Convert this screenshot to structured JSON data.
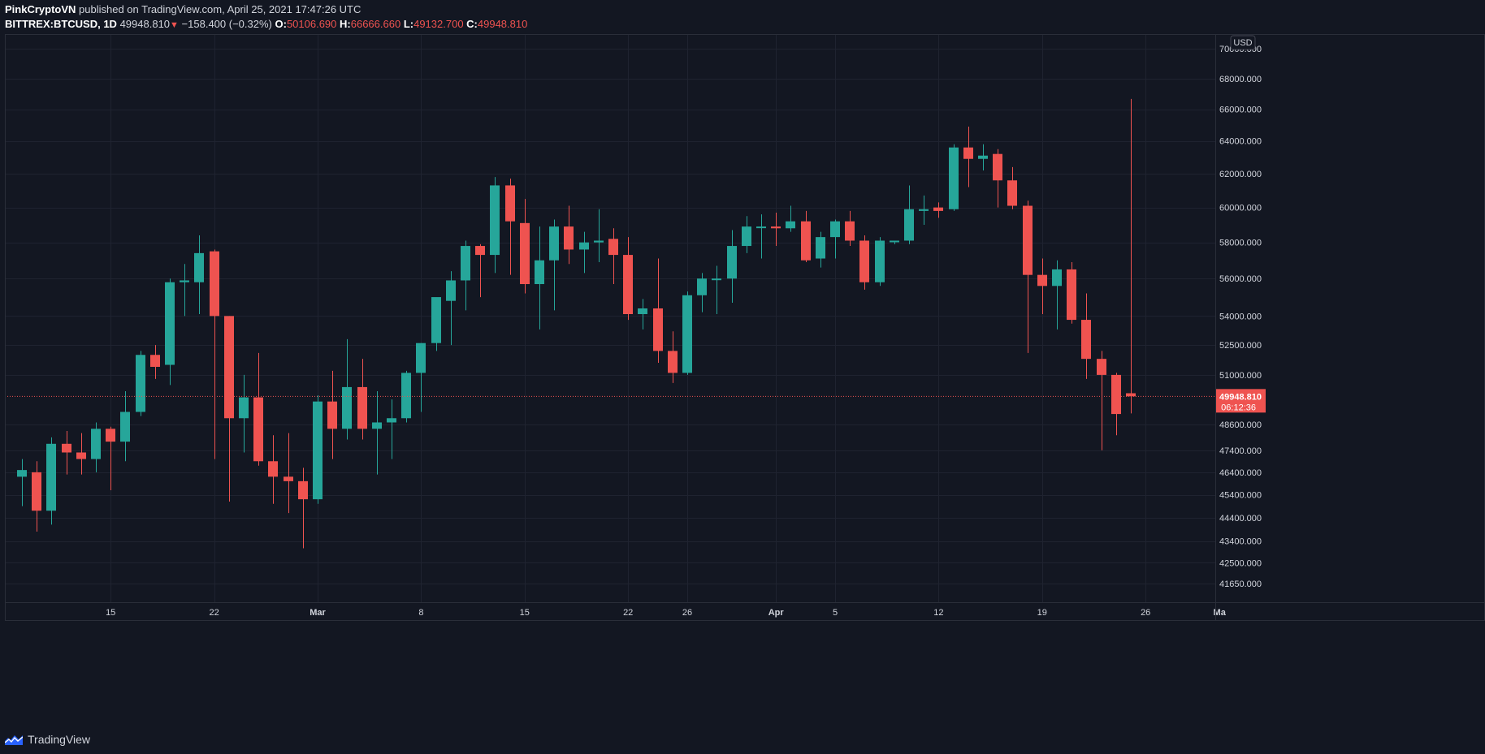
{
  "header": {
    "publisher": "PinkCryptoVN",
    "published_text": " published on TradingView.com, April 25, 2021 17:47:26 UTC",
    "symbol": "BITTREX:BTCUSD, 1D",
    "last": "49948.810",
    "change_arrow": "▼",
    "change": "−158.400 (−0.32%)",
    "o_label": "O:",
    "o_value": "50106.690",
    "h_label": "H:",
    "h_value": "66666.660",
    "l_label": "L:",
    "l_value": "49132.700",
    "c_label": "C:",
    "c_value": "49948.810"
  },
  "footer": {
    "brand": "TradingView",
    "logo_icon": "tradingview-logo-icon"
  },
  "colors": {
    "background": "#131722",
    "grid": "#1f2330",
    "up": "#26a69a",
    "down": "#ef5350",
    "axis_text": "#d1d4dc"
  },
  "chart_data": {
    "type": "candlestick",
    "currency_label": "USD",
    "scale": "log",
    "ylim": [
      40900,
      71000
    ],
    "y_ticks": [
      70000,
      68000,
      66000,
      64000,
      62000,
      60000,
      58000,
      56000,
      54000,
      52500,
      51000,
      48600,
      47400,
      46400,
      45400,
      44400,
      43400,
      42500,
      41650
    ],
    "y_tick_labels": [
      "70000.000",
      "68000.000",
      "66000.000",
      "64000.000",
      "62000.000",
      "60000.000",
      "58000.000",
      "56000.000",
      "54000.000",
      "52500.000",
      "51000.000",
      "48600.000",
      "47400.000",
      "46400.000",
      "45400.000",
      "44400.000",
      "43400.000",
      "42500.000",
      "41650.000"
    ],
    "x_ticks": [
      {
        "index": 6,
        "label": "15",
        "bold": false
      },
      {
        "index": 13,
        "label": "22",
        "bold": false
      },
      {
        "index": 20,
        "label": "Mar",
        "bold": true
      },
      {
        "index": 27,
        "label": "8",
        "bold": false
      },
      {
        "index": 34,
        "label": "15",
        "bold": false
      },
      {
        "index": 41,
        "label": "22",
        "bold": false
      },
      {
        "index": 45,
        "label": "26",
        "bold": false
      },
      {
        "index": 51,
        "label": "Apr",
        "bold": true
      },
      {
        "index": 55,
        "label": "5",
        "bold": false
      },
      {
        "index": 62,
        "label": "12",
        "bold": false
      },
      {
        "index": 69,
        "label": "19",
        "bold": false
      },
      {
        "index": 76,
        "label": "26",
        "bold": false
      },
      {
        "index": 81,
        "label": "Ma",
        "bold": true
      }
    ],
    "last_price_label": "49948.810",
    "countdown_label": "06:12:36",
    "last_price": 49948.81,
    "candles": [
      {
        "o": 46200,
        "h": 47000,
        "l": 44900,
        "c": 46500
      },
      {
        "o": 46400,
        "h": 46900,
        "l": 43800,
        "c": 44700
      },
      {
        "o": 44700,
        "h": 48000,
        "l": 44100,
        "c": 47700
      },
      {
        "o": 47700,
        "h": 48300,
        "l": 46300,
        "c": 47300
      },
      {
        "o": 47300,
        "h": 48200,
        "l": 46300,
        "c": 47000
      },
      {
        "o": 47000,
        "h": 48700,
        "l": 46400,
        "c": 48400
      },
      {
        "o": 48400,
        "h": 48500,
        "l": 45600,
        "c": 47800
      },
      {
        "o": 47800,
        "h": 50200,
        "l": 46900,
        "c": 49200
      },
      {
        "o": 49200,
        "h": 52200,
        "l": 49000,
        "c": 52000
      },
      {
        "o": 52000,
        "h": 52500,
        "l": 50800,
        "c": 51400
      },
      {
        "o": 51500,
        "h": 56000,
        "l": 50500,
        "c": 55800
      },
      {
        "o": 55800,
        "h": 56800,
        "l": 54000,
        "c": 55900
      },
      {
        "o": 55800,
        "h": 58400,
        "l": 54100,
        "c": 57400
      },
      {
        "o": 57500,
        "h": 57600,
        "l": 47000,
        "c": 54000
      },
      {
        "o": 54000,
        "h": 54000,
        "l": 45100,
        "c": 48900
      },
      {
        "o": 48900,
        "h": 51000,
        "l": 47300,
        "c": 49900
      },
      {
        "o": 49900,
        "h": 52100,
        "l": 46700,
        "c": 46900
      },
      {
        "o": 46900,
        "h": 48100,
        "l": 45000,
        "c": 46200
      },
      {
        "o": 46200,
        "h": 48200,
        "l": 44600,
        "c": 46000
      },
      {
        "o": 46000,
        "h": 46600,
        "l": 43100,
        "c": 45200
      },
      {
        "o": 45200,
        "h": 50000,
        "l": 45000,
        "c": 49700
      },
      {
        "o": 49700,
        "h": 51200,
        "l": 47000,
        "c": 48400
      },
      {
        "o": 48400,
        "h": 52800,
        "l": 47900,
        "c": 50400
      },
      {
        "o": 50400,
        "h": 51800,
        "l": 47900,
        "c": 48400
      },
      {
        "o": 48400,
        "h": 50200,
        "l": 46300,
        "c": 48700
      },
      {
        "o": 48700,
        "h": 49800,
        "l": 47000,
        "c": 48900
      },
      {
        "o": 48900,
        "h": 51200,
        "l": 48700,
        "c": 51100
      },
      {
        "o": 51100,
        "h": 52600,
        "l": 49200,
        "c": 52600
      },
      {
        "o": 52600,
        "h": 54800,
        "l": 52200,
        "c": 55000
      },
      {
        "o": 54800,
        "h": 56400,
        "l": 52500,
        "c": 55900
      },
      {
        "o": 55900,
        "h": 58100,
        "l": 54300,
        "c": 57800
      },
      {
        "o": 57800,
        "h": 57900,
        "l": 55000,
        "c": 57300
      },
      {
        "o": 57300,
        "h": 61800,
        "l": 56300,
        "c": 61300
      },
      {
        "o": 61300,
        "h": 61700,
        "l": 56200,
        "c": 59200
      },
      {
        "o": 59100,
        "h": 60500,
        "l": 55200,
        "c": 55700
      },
      {
        "o": 55700,
        "h": 58900,
        "l": 53300,
        "c": 57000
      },
      {
        "o": 57000,
        "h": 59300,
        "l": 54300,
        "c": 58900
      },
      {
        "o": 58900,
        "h": 60100,
        "l": 56800,
        "c": 57600
      },
      {
        "o": 57600,
        "h": 58600,
        "l": 56300,
        "c": 58000
      },
      {
        "o": 58000,
        "h": 59900,
        "l": 56900,
        "c": 58100
      },
      {
        "o": 58200,
        "h": 58800,
        "l": 55700,
        "c": 57300
      },
      {
        "o": 57300,
        "h": 58300,
        "l": 53800,
        "c": 54100
      },
      {
        "o": 54100,
        "h": 54900,
        "l": 53300,
        "c": 54400
      },
      {
        "o": 54400,
        "h": 57100,
        "l": 51600,
        "c": 52200
      },
      {
        "o": 52200,
        "h": 53200,
        "l": 50600,
        "c": 51100
      },
      {
        "o": 51100,
        "h": 55300,
        "l": 51000,
        "c": 55100
      },
      {
        "o": 55100,
        "h": 56300,
        "l": 54200,
        "c": 56000
      },
      {
        "o": 56000,
        "h": 56700,
        "l": 54100,
        "c": 56000
      },
      {
        "o": 56000,
        "h": 58700,
        "l": 54700,
        "c": 57800
      },
      {
        "o": 57800,
        "h": 59500,
        "l": 57400,
        "c": 58900
      },
      {
        "o": 58900,
        "h": 59600,
        "l": 57100,
        "c": 58900
      },
      {
        "o": 58900,
        "h": 59700,
        "l": 57800,
        "c": 58800
      },
      {
        "o": 58800,
        "h": 60100,
        "l": 58600,
        "c": 59200
      },
      {
        "o": 59200,
        "h": 59800,
        "l": 56900,
        "c": 57000
      },
      {
        "o": 57100,
        "h": 58600,
        "l": 56600,
        "c": 58300
      },
      {
        "o": 58300,
        "h": 59300,
        "l": 57100,
        "c": 59200
      },
      {
        "o": 59200,
        "h": 59800,
        "l": 57800,
        "c": 58100
      },
      {
        "o": 58100,
        "h": 58400,
        "l": 55400,
        "c": 55800
      },
      {
        "o": 55800,
        "h": 58300,
        "l": 55600,
        "c": 58100
      },
      {
        "o": 58100,
        "h": 58100,
        "l": 57900,
        "c": 58100
      },
      {
        "o": 58100,
        "h": 61300,
        "l": 57900,
        "c": 59900
      },
      {
        "o": 59800,
        "h": 60700,
        "l": 59000,
        "c": 59900
      },
      {
        "o": 60000,
        "h": 60300,
        "l": 59400,
        "c": 59800
      },
      {
        "o": 59900,
        "h": 63800,
        "l": 59800,
        "c": 63600
      },
      {
        "o": 63600,
        "h": 64900,
        "l": 61200,
        "c": 62900
      },
      {
        "o": 62900,
        "h": 63800,
        "l": 62200,
        "c": 63100
      },
      {
        "o": 63200,
        "h": 63500,
        "l": 60000,
        "c": 61600
      },
      {
        "o": 61600,
        "h": 62400,
        "l": 59900,
        "c": 60100
      },
      {
        "o": 60100,
        "h": 60400,
        "l": 52100,
        "c": 56200
      },
      {
        "o": 56200,
        "h": 57100,
        "l": 54100,
        "c": 55600
      },
      {
        "o": 55600,
        "h": 57000,
        "l": 53300,
        "c": 56500
      },
      {
        "o": 56500,
        "h": 56900,
        "l": 53600,
        "c": 53800
      },
      {
        "o": 53800,
        "h": 55200,
        "l": 50800,
        "c": 51800
      },
      {
        "o": 51800,
        "h": 52200,
        "l": 47400,
        "c": 51000
      },
      {
        "o": 51000,
        "h": 51100,
        "l": 48100,
        "c": 49100
      },
      {
        "o": 50100,
        "h": 66666,
        "l": 49130,
        "c": 49950
      }
    ]
  }
}
